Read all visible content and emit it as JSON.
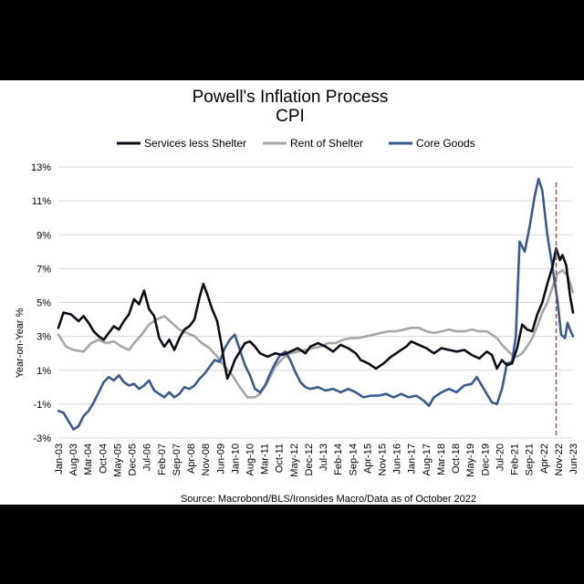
{
  "colors": {
    "services": "#0d0d1a",
    "shelter": "#a6a6a6",
    "goods": "#3a5a8c",
    "grid": "#d9d9d9",
    "marker": "#c0392b"
  },
  "chart_data": {
    "type": "line",
    "title": "Powell's Inflation Process",
    "subtitle": "CPI",
    "ylabel": "Year-on-Year %",
    "source": "Source: Macrobond/BLS/Ironsides Macro/Data as of October 2022",
    "ylim": [
      -3,
      13
    ],
    "xlim": [
      2003.0,
      2023.42
    ],
    "y_ticks": [
      "13%",
      "11%",
      "9%",
      "7%",
      "5%",
      "3%",
      "1%",
      "-1%",
      "-3%"
    ],
    "x_ticks": [
      "Jan-03",
      "Aug-03",
      "Mar-04",
      "Oct-04",
      "May-05",
      "Dec-05",
      "Jul-06",
      "Feb-07",
      "Sep-07",
      "Apr-08",
      "Nov-08",
      "Jun-09",
      "Jan-10",
      "Aug-10",
      "Mar-11",
      "Oct-11",
      "May-12",
      "Dec-12",
      "Jul-13",
      "Feb-14",
      "Sep-14",
      "Apr-15",
      "Nov-15",
      "Jun-16",
      "Jan-17",
      "Aug-17",
      "Mar-18",
      "Oct-18",
      "May-19",
      "Dec-19",
      "Jul-20",
      "Feb-21",
      "Sep-21",
      "Apr-22",
      "Nov-22",
      "Jun-23"
    ],
    "grid": "horizontal",
    "legend_position": "top",
    "vertical_marker_x": 2022.75,
    "series": [
      {
        "name": "Services less Shelter",
        "points": [
          [
            2003.0,
            3.5
          ],
          [
            2003.2,
            4.4
          ],
          [
            2003.5,
            4.3
          ],
          [
            2003.8,
            3.9
          ],
          [
            2004.0,
            4.2
          ],
          [
            2004.2,
            3.8
          ],
          [
            2004.4,
            3.3
          ],
          [
            2004.6,
            3.0
          ],
          [
            2004.8,
            2.8
          ],
          [
            2005.0,
            3.2
          ],
          [
            2005.2,
            3.6
          ],
          [
            2005.4,
            3.4
          ],
          [
            2005.6,
            3.9
          ],
          [
            2005.8,
            4.3
          ],
          [
            2006.0,
            5.2
          ],
          [
            2006.2,
            4.9
          ],
          [
            2006.4,
            5.7
          ],
          [
            2006.6,
            4.6
          ],
          [
            2006.8,
            4.2
          ],
          [
            2007.0,
            2.9
          ],
          [
            2007.2,
            2.4
          ],
          [
            2007.4,
            2.8
          ],
          [
            2007.6,
            2.2
          ],
          [
            2007.8,
            2.9
          ],
          [
            2008.0,
            3.4
          ],
          [
            2008.2,
            3.6
          ],
          [
            2008.4,
            4.0
          ],
          [
            2008.6,
            5.3
          ],
          [
            2008.75,
            6.1
          ],
          [
            2008.9,
            5.5
          ],
          [
            2009.1,
            4.6
          ],
          [
            2009.3,
            3.9
          ],
          [
            2009.45,
            2.7
          ],
          [
            2009.6,
            1.3
          ],
          [
            2009.7,
            0.5
          ],
          [
            2009.85,
            1.0
          ],
          [
            2010.0,
            1.6
          ],
          [
            2010.2,
            2.1
          ],
          [
            2010.4,
            2.6
          ],
          [
            2010.6,
            2.7
          ],
          [
            2010.8,
            2.4
          ],
          [
            2011.0,
            2.0
          ],
          [
            2011.3,
            1.8
          ],
          [
            2011.6,
            2.0
          ],
          [
            2011.9,
            1.9
          ],
          [
            2012.2,
            2.1
          ],
          [
            2012.5,
            2.3
          ],
          [
            2012.8,
            2.0
          ],
          [
            2013.0,
            2.4
          ],
          [
            2013.3,
            2.6
          ],
          [
            2013.6,
            2.4
          ],
          [
            2013.9,
            2.1
          ],
          [
            2014.2,
            2.5
          ],
          [
            2014.5,
            2.3
          ],
          [
            2014.8,
            2.0
          ],
          [
            2015.0,
            1.6
          ],
          [
            2015.3,
            1.4
          ],
          [
            2015.6,
            1.1
          ],
          [
            2015.9,
            1.4
          ],
          [
            2016.2,
            1.8
          ],
          [
            2016.5,
            2.1
          ],
          [
            2016.8,
            2.4
          ],
          [
            2017.0,
            2.7
          ],
          [
            2017.3,
            2.5
          ],
          [
            2017.6,
            2.3
          ],
          [
            2017.9,
            2.0
          ],
          [
            2018.2,
            2.3
          ],
          [
            2018.5,
            2.2
          ],
          [
            2018.8,
            2.1
          ],
          [
            2019.1,
            2.2
          ],
          [
            2019.4,
            1.9
          ],
          [
            2019.7,
            1.7
          ],
          [
            2020.0,
            2.1
          ],
          [
            2020.2,
            1.9
          ],
          [
            2020.4,
            1.1
          ],
          [
            2020.6,
            1.6
          ],
          [
            2020.8,
            1.3
          ],
          [
            2021.0,
            1.4
          ],
          [
            2021.2,
            2.3
          ],
          [
            2021.4,
            3.7
          ],
          [
            2021.6,
            3.4
          ],
          [
            2021.8,
            3.3
          ],
          [
            2022.0,
            4.3
          ],
          [
            2022.2,
            5.0
          ],
          [
            2022.4,
            6.1
          ],
          [
            2022.6,
            7.1
          ],
          [
            2022.75,
            8.2
          ],
          [
            2022.9,
            7.5
          ],
          [
            2023.0,
            7.8
          ],
          [
            2023.15,
            7.2
          ],
          [
            2023.3,
            5.4
          ],
          [
            2023.42,
            4.4
          ]
        ]
      },
      {
        "name": "Rent of Shelter",
        "points": [
          [
            2003.0,
            3.1
          ],
          [
            2003.3,
            2.4
          ],
          [
            2003.6,
            2.2
          ],
          [
            2004.0,
            2.1
          ],
          [
            2004.3,
            2.6
          ],
          [
            2004.6,
            2.8
          ],
          [
            2004.9,
            2.6
          ],
          [
            2005.2,
            2.7
          ],
          [
            2005.5,
            2.4
          ],
          [
            2005.8,
            2.2
          ],
          [
            2006.0,
            2.6
          ],
          [
            2006.3,
            3.1
          ],
          [
            2006.6,
            3.7
          ],
          [
            2006.9,
            4.0
          ],
          [
            2007.2,
            4.2
          ],
          [
            2007.5,
            3.8
          ],
          [
            2007.8,
            3.4
          ],
          [
            2008.1,
            3.2
          ],
          [
            2008.4,
            3.0
          ],
          [
            2008.7,
            2.6
          ],
          [
            2009.0,
            2.3
          ],
          [
            2009.3,
            1.8
          ],
          [
            2009.6,
            1.2
          ],
          [
            2009.9,
            0.7
          ],
          [
            2010.2,
            0.0
          ],
          [
            2010.5,
            -0.6
          ],
          [
            2010.8,
            -0.6
          ],
          [
            2011.0,
            -0.4
          ],
          [
            2011.3,
            0.3
          ],
          [
            2011.6,
            1.2
          ],
          [
            2011.9,
            1.7
          ],
          [
            2012.2,
            2.0
          ],
          [
            2012.5,
            2.1
          ],
          [
            2012.8,
            2.2
          ],
          [
            2013.1,
            2.3
          ],
          [
            2013.4,
            2.4
          ],
          [
            2013.7,
            2.6
          ],
          [
            2014.0,
            2.6
          ],
          [
            2014.3,
            2.8
          ],
          [
            2014.6,
            2.9
          ],
          [
            2014.9,
            2.9
          ],
          [
            2015.2,
            3.0
          ],
          [
            2015.5,
            3.1
          ],
          [
            2015.8,
            3.2
          ],
          [
            2016.1,
            3.3
          ],
          [
            2016.4,
            3.3
          ],
          [
            2016.7,
            3.4
          ],
          [
            2017.0,
            3.5
          ],
          [
            2017.3,
            3.5
          ],
          [
            2017.6,
            3.3
          ],
          [
            2017.9,
            3.2
          ],
          [
            2018.2,
            3.3
          ],
          [
            2018.5,
            3.4
          ],
          [
            2018.8,
            3.3
          ],
          [
            2019.1,
            3.3
          ],
          [
            2019.4,
            3.4
          ],
          [
            2019.7,
            3.3
          ],
          [
            2020.0,
            3.3
          ],
          [
            2020.2,
            3.1
          ],
          [
            2020.4,
            2.9
          ],
          [
            2020.6,
            2.5
          ],
          [
            2020.8,
            2.2
          ],
          [
            2021.0,
            1.9
          ],
          [
            2021.2,
            1.8
          ],
          [
            2021.4,
            2.0
          ],
          [
            2021.6,
            2.4
          ],
          [
            2021.8,
            2.9
          ],
          [
            2022.0,
            3.6
          ],
          [
            2022.2,
            4.4
          ],
          [
            2022.4,
            5.0
          ],
          [
            2022.6,
            5.9
          ],
          [
            2022.8,
            6.7
          ],
          [
            2023.0,
            6.9
          ],
          [
            2023.2,
            6.6
          ],
          [
            2023.42,
            5.6
          ]
        ]
      },
      {
        "name": "Core Goods",
        "points": [
          [
            2003.0,
            -1.4
          ],
          [
            2003.2,
            -1.5
          ],
          [
            2003.4,
            -2.0
          ],
          [
            2003.6,
            -2.5
          ],
          [
            2003.8,
            -2.3
          ],
          [
            2004.0,
            -1.7
          ],
          [
            2004.2,
            -1.4
          ],
          [
            2004.4,
            -0.9
          ],
          [
            2004.6,
            -0.3
          ],
          [
            2004.8,
            0.3
          ],
          [
            2005.0,
            0.6
          ],
          [
            2005.2,
            0.4
          ],
          [
            2005.4,
            0.7
          ],
          [
            2005.6,
            0.3
          ],
          [
            2005.8,
            0.1
          ],
          [
            2006.0,
            0.2
          ],
          [
            2006.2,
            -0.1
          ],
          [
            2006.4,
            0.1
          ],
          [
            2006.6,
            0.4
          ],
          [
            2006.8,
            -0.2
          ],
          [
            2007.0,
            -0.4
          ],
          [
            2007.2,
            -0.6
          ],
          [
            2007.4,
            -0.3
          ],
          [
            2007.6,
            -0.6
          ],
          [
            2007.8,
            -0.4
          ],
          [
            2008.0,
            0.0
          ],
          [
            2008.2,
            -0.1
          ],
          [
            2008.4,
            0.1
          ],
          [
            2008.6,
            0.5
          ],
          [
            2008.8,
            0.8
          ],
          [
            2009.0,
            1.2
          ],
          [
            2009.2,
            1.6
          ],
          [
            2009.4,
            1.5
          ],
          [
            2009.6,
            2.3
          ],
          [
            2009.8,
            2.8
          ],
          [
            2010.0,
            3.1
          ],
          [
            2010.2,
            2.2
          ],
          [
            2010.4,
            1.3
          ],
          [
            2010.6,
            0.7
          ],
          [
            2010.8,
            -0.1
          ],
          [
            2011.0,
            -0.3
          ],
          [
            2011.2,
            0.1
          ],
          [
            2011.4,
            0.8
          ],
          [
            2011.6,
            1.4
          ],
          [
            2011.8,
            1.9
          ],
          [
            2012.0,
            2.1
          ],
          [
            2012.2,
            1.6
          ],
          [
            2012.4,
            0.9
          ],
          [
            2012.6,
            0.3
          ],
          [
            2012.8,
            0.0
          ],
          [
            2013.0,
            -0.1
          ],
          [
            2013.3,
            0.0
          ],
          [
            2013.6,
            -0.2
          ],
          [
            2013.9,
            -0.1
          ],
          [
            2014.2,
            -0.3
          ],
          [
            2014.5,
            -0.1
          ],
          [
            2014.8,
            -0.3
          ],
          [
            2015.1,
            -0.6
          ],
          [
            2015.4,
            -0.5
          ],
          [
            2015.7,
            -0.5
          ],
          [
            2016.0,
            -0.4
          ],
          [
            2016.3,
            -0.6
          ],
          [
            2016.6,
            -0.4
          ],
          [
            2016.9,
            -0.6
          ],
          [
            2017.2,
            -0.5
          ],
          [
            2017.5,
            -0.8
          ],
          [
            2017.7,
            -1.1
          ],
          [
            2017.9,
            -0.6
          ],
          [
            2018.2,
            -0.3
          ],
          [
            2018.5,
            -0.1
          ],
          [
            2018.8,
            -0.3
          ],
          [
            2019.1,
            0.1
          ],
          [
            2019.4,
            0.2
          ],
          [
            2019.6,
            0.6
          ],
          [
            2019.8,
            0.1
          ],
          [
            2020.0,
            -0.4
          ],
          [
            2020.2,
            -0.9
          ],
          [
            2020.4,
            -1.0
          ],
          [
            2020.6,
            -0.1
          ],
          [
            2020.8,
            1.4
          ],
          [
            2021.0,
            1.5
          ],
          [
            2021.15,
            3.0
          ],
          [
            2021.3,
            8.6
          ],
          [
            2021.5,
            8.0
          ],
          [
            2021.7,
            9.5
          ],
          [
            2021.9,
            11.3
          ],
          [
            2022.05,
            12.3
          ],
          [
            2022.2,
            11.6
          ],
          [
            2022.4,
            9.0
          ],
          [
            2022.6,
            7.1
          ],
          [
            2022.8,
            5.1
          ],
          [
            2022.95,
            3.1
          ],
          [
            2023.1,
            2.9
          ],
          [
            2023.2,
            3.8
          ],
          [
            2023.3,
            3.4
          ],
          [
            2023.42,
            3.0
          ]
        ]
      }
    ]
  }
}
